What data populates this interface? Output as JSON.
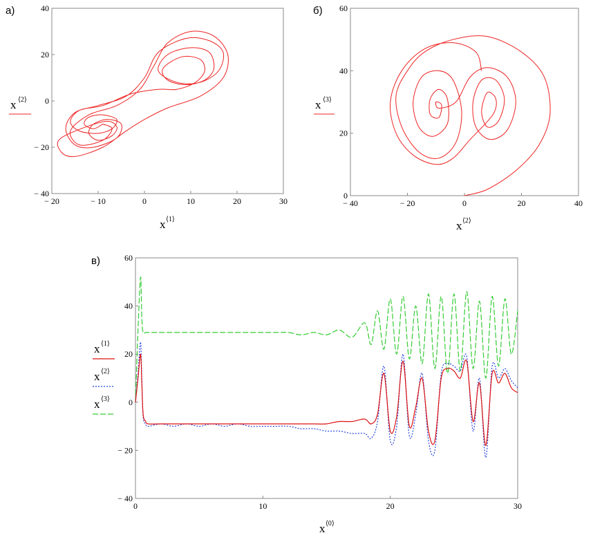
{
  "chart_data": [
    {
      "type": "line",
      "panel_label": "а)",
      "xlim": [
        -20,
        30
      ],
      "ylim": [
        -40,
        40
      ],
      "xticks": [
        "− 20",
        "− 10",
        "0",
        "10",
        "20",
        "30"
      ],
      "yticks": [
        "40",
        "20",
        "0",
        "− 20",
        "− 40"
      ],
      "xlabel": {
        "var": "x",
        "sup": "⟨1⟩"
      },
      "ylabel": {
        "var": "x",
        "sup": "⟨2⟩"
      },
      "series": [
        {
          "color": "#ee2222",
          "style": "solid",
          "description_points": [
            [
              -9,
              -10
            ],
            [
              -11,
              -12
            ],
            [
              -13,
              -10
            ],
            [
              -12,
              -7
            ],
            [
              -9,
              -6
            ],
            [
              -6,
              -8
            ],
            [
              -7,
              -12
            ],
            [
              -10,
              -14
            ],
            [
              -14,
              -13
            ],
            [
              -16,
              -9
            ],
            [
              -14,
              -4
            ],
            [
              -9,
              -2
            ],
            [
              -3,
              3
            ],
            [
              3,
              5
            ],
            [
              7,
              5
            ],
            [
              11,
              8
            ],
            [
              13,
              13
            ],
            [
              12,
              18
            ],
            [
              8,
              19
            ],
            [
              4,
              14
            ],
            [
              5,
              9
            ],
            [
              9,
              7
            ],
            [
              13,
              9
            ],
            [
              15,
              14
            ],
            [
              14,
              21
            ],
            [
              10,
              23
            ],
            [
              5,
              20
            ],
            [
              3,
              13
            ],
            [
              7,
              8
            ],
            [
              12,
              8
            ],
            [
              16,
              13
            ],
            [
              17,
              21
            ],
            [
              14,
              26
            ],
            [
              9,
              27
            ],
            [
              3,
              21
            ],
            [
              0,
              10
            ],
            [
              -4,
              2
            ],
            [
              -10,
              -2
            ],
            [
              -15,
              -5
            ],
            [
              -17,
              -12
            ],
            [
              -15,
              -19
            ],
            [
              -11,
              -20
            ],
            [
              -6,
              -16
            ],
            [
              -5,
              -10
            ],
            [
              -8,
              -8
            ],
            [
              -11,
              -10
            ],
            [
              -12,
              -14
            ],
            [
              -10,
              -17
            ],
            [
              -7,
              -15
            ],
            [
              -6,
              -11
            ],
            [
              -9,
              -9
            ],
            [
              -18,
              -16
            ],
            [
              -18,
              -22
            ],
            [
              -15,
              -24
            ],
            [
              -9,
              -20
            ],
            [
              -4,
              -13
            ],
            [
              0,
              -8
            ],
            [
              5,
              -3
            ],
            [
              12,
              2
            ],
            [
              17,
              10
            ],
            [
              18,
              20
            ],
            [
              15,
              28
            ],
            [
              10,
              30
            ],
            [
              5,
              25
            ],
            [
              2,
              15
            ],
            [
              -1,
              5
            ],
            [
              -6,
              -2
            ],
            [
              -12,
              -6
            ],
            [
              -16,
              -13
            ],
            [
              -14,
              -19
            ],
            [
              -9,
              -17
            ],
            [
              -7,
              -12
            ],
            [
              -9,
              -10
            ]
          ]
        }
      ]
    },
    {
      "type": "line",
      "panel_label": "б)",
      "xlim": [
        -40,
        40
      ],
      "ylim": [
        0,
        60
      ],
      "xticks": [
        "− 40",
        "− 20",
        "0",
        "20",
        "40"
      ],
      "yticks": [
        "60",
        "40",
        "20",
        "0"
      ],
      "xlabel": {
        "var": "x",
        "sup": "⟨2⟩"
      },
      "ylabel": {
        "var": "x",
        "sup": "⟨3⟩"
      },
      "series": [
        {
          "color": "#ee2222",
          "style": "solid",
          "description_points": [
            [
              0,
              0
            ],
            [
              8,
              2
            ],
            [
              18,
              8
            ],
            [
              26,
              16
            ],
            [
              30,
              26
            ],
            [
              28,
              38
            ],
            [
              20,
              46
            ],
            [
              8,
              51
            ],
            [
              -4,
              50
            ],
            [
              -14,
              46
            ],
            [
              -20,
              40
            ],
            [
              -24,
              32
            ],
            [
              -22,
              22
            ],
            [
              -16,
              14
            ],
            [
              -9,
              12
            ],
            [
              -3,
              17
            ],
            [
              -1,
              27
            ],
            [
              -4,
              37
            ],
            [
              -9,
              40
            ],
            [
              -15,
              38
            ],
            [
              -18,
              30
            ],
            [
              -16,
              22
            ],
            [
              -11,
              19
            ],
            [
              -6,
              23
            ],
            [
              -6,
              31
            ],
            [
              -9,
              34
            ],
            [
              -12,
              31
            ],
            [
              -12,
              26
            ],
            [
              -9,
              25
            ],
            [
              -8,
              29
            ],
            [
              -10,
              30
            ],
            [
              -9,
              28
            ],
            [
              -3,
              30
            ],
            [
              2,
              38
            ],
            [
              8,
              41
            ],
            [
              15,
              38
            ],
            [
              18,
              30
            ],
            [
              15,
              21
            ],
            [
              9,
              18
            ],
            [
              4,
              22
            ],
            [
              3,
              30
            ],
            [
              6,
              37
            ],
            [
              11,
              37
            ],
            [
              14,
              31
            ],
            [
              12,
              24
            ],
            [
              8,
              22
            ],
            [
              6,
              27
            ],
            [
              8,
              33
            ],
            [
              11,
              31
            ],
            [
              10,
              26
            ],
            [
              2,
              18
            ],
            [
              -4,
              12
            ],
            [
              -10,
              10
            ],
            [
              -18,
              13
            ],
            [
              -24,
              20
            ],
            [
              -26,
              30
            ],
            [
              -22,
              40
            ],
            [
              -14,
              47
            ],
            [
              -4,
              49
            ],
            [
              4,
              46
            ],
            [
              6,
              40
            ]
          ]
        }
      ]
    },
    {
      "type": "line",
      "panel_label": "в)",
      "xlim": [
        0,
        30
      ],
      "ylim": [
        -40,
        60
      ],
      "xticks": [
        "0",
        "10",
        "20",
        "30"
      ],
      "yticks": [
        "60",
        "40",
        "20",
        "0",
        "− 20",
        "− 40"
      ],
      "xlabel": {
        "var": "x",
        "sup": "⟨0⟩"
      },
      "series": [
        {
          "name": "x⟨1⟩",
          "color": "#dd1111",
          "style": "solid",
          "x": [
            0,
            0.2,
            0.4,
            0.5,
            0.6,
            0.8,
            1,
            2,
            3,
            4,
            5,
            6,
            7,
            8,
            9,
            10,
            11,
            12,
            13,
            14,
            15,
            16,
            17,
            18,
            18.5,
            19,
            19.5,
            20,
            20.5,
            21,
            21.5,
            22,
            22.5,
            23,
            23.5,
            24,
            24.5,
            25,
            25.5,
            26,
            26.5,
            27,
            27.5,
            28,
            28.5,
            29,
            29.5,
            30
          ],
          "values": [
            0,
            10,
            20,
            8,
            -5,
            -8,
            -9,
            -9,
            -9,
            -9,
            -9,
            -9,
            -9,
            -9,
            -9,
            -9,
            -9,
            -9,
            -9,
            -9,
            -9,
            -8,
            -8,
            -7,
            -9,
            -5,
            12,
            -12,
            -6,
            17,
            -10,
            -2,
            10,
            -12,
            -16,
            10,
            14,
            13,
            10,
            17,
            -8,
            8,
            -18,
            12,
            8,
            12,
            6,
            4
          ]
        },
        {
          "name": "x⟨2⟩",
          "color": "#2244dd",
          "style": "dotted",
          "x": [
            0,
            0.2,
            0.4,
            0.5,
            0.6,
            0.8,
            1,
            2,
            3,
            4,
            5,
            6,
            7,
            8,
            9,
            10,
            11,
            12,
            13,
            14,
            15,
            16,
            17,
            18,
            18.5,
            19,
            19.5,
            20,
            20.5,
            21,
            21.5,
            22,
            22.5,
            23,
            23.5,
            24,
            24.5,
            25,
            25.5,
            26,
            26.5,
            27,
            27.5,
            28,
            28.5,
            29,
            29.5,
            30
          ],
          "values": [
            0,
            12,
            25,
            10,
            -6,
            -9,
            -10,
            -9,
            -10,
            -9,
            -10,
            -9,
            -10,
            -9,
            -10,
            -10,
            -10,
            -10,
            -11,
            -11,
            -12,
            -12,
            -13,
            -13,
            -15,
            -8,
            15,
            -16,
            -10,
            20,
            -14,
            -5,
            12,
            -16,
            -20,
            12,
            16,
            15,
            13,
            19,
            -12,
            10,
            -23,
            15,
            10,
            14,
            9,
            6
          ]
        },
        {
          "name": "x⟨3⟩",
          "color": "#33cc33",
          "style": "dashed",
          "x": [
            0,
            0.2,
            0.4,
            0.5,
            0.6,
            0.8,
            1,
            2,
            3,
            4,
            5,
            6,
            7,
            8,
            9,
            10,
            11,
            12,
            13,
            14,
            15,
            16,
            17,
            18,
            18.5,
            19,
            19.5,
            20,
            20.5,
            21,
            21.5,
            22,
            22.5,
            23,
            23.5,
            24,
            24.5,
            25,
            25.5,
            26,
            26.5,
            27,
            27.5,
            28,
            28.5,
            29,
            29.5,
            30
          ],
          "values": [
            0,
            30,
            52,
            35,
            29,
            29,
            29,
            29,
            29,
            29,
            29,
            29,
            29,
            29,
            29,
            29,
            29,
            29,
            28,
            29,
            28,
            30,
            27,
            33,
            24,
            38,
            22,
            43,
            20,
            44,
            18,
            40,
            16,
            45,
            14,
            44,
            12,
            45,
            13,
            46,
            14,
            42,
            10,
            44,
            15,
            43,
            20,
            38
          ]
        }
      ]
    }
  ]
}
